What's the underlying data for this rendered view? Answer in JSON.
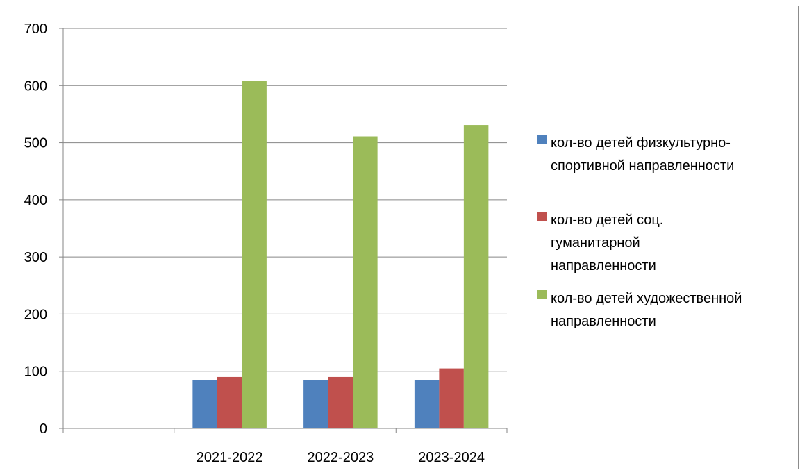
{
  "chart_data": {
    "type": "bar",
    "categories": [
      "",
      "2021-2022",
      "2022-2023",
      "2023-2024"
    ],
    "series": [
      {
        "name": "кол-во детей физкультурно-спортивной направленности",
        "name_lines": [
          "кол-во детей физкультурно-",
          "спортивной  направленности"
        ],
        "color": "#4f81bd",
        "values": [
          null,
          85,
          85,
          85
        ]
      },
      {
        "name": "кол-во детей соц. гуманитарной направленности",
        "name_lines": [
          "кол-во детей соц.",
          "гуманитарной",
          "направленности"
        ],
        "color": "#c0504d",
        "values": [
          null,
          90,
          90,
          105
        ]
      },
      {
        "name": "кол-во детей художественной направленности",
        "name_lines": [
          "кол-во детей художественной",
          "направленности"
        ],
        "color": "#9bbb59",
        "values": [
          null,
          608,
          511,
          531
        ]
      }
    ],
    "yticks": [
      "0",
      "100",
      "200",
      "300",
      "400",
      "500",
      "600",
      "700"
    ],
    "ylim": [
      0,
      700
    ],
    "grid": true,
    "legend_position": "right",
    "title": "",
    "xlabel": "",
    "ylabel": ""
  }
}
